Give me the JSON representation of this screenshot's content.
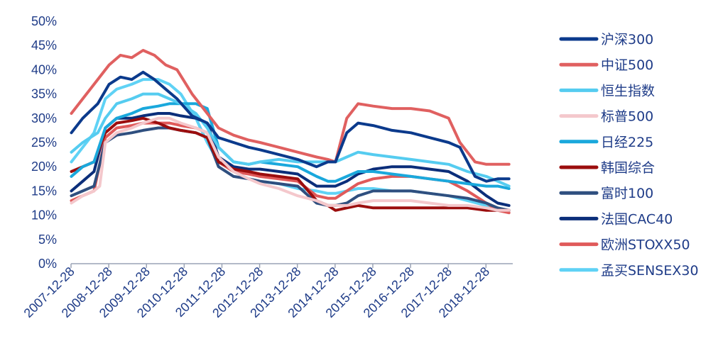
{
  "chart_data": {
    "type": "line",
    "title": "",
    "xlabel": "",
    "ylabel": "",
    "x_range": [
      2007.99,
      2019.7
    ],
    "ylim": [
      0,
      50
    ],
    "grid": false,
    "legend_position": "right",
    "y_ticks": [
      "0%",
      "5%",
      "10%",
      "15%",
      "20%",
      "25%",
      "30%",
      "35%",
      "40%",
      "45%",
      "50%"
    ],
    "x_ticks": [
      "2007-12-28",
      "2008-12-28",
      "2009-12-28",
      "2010-12-28",
      "2011-12-28",
      "2012-12-28",
      "2013-12-28",
      "2014-12-28",
      "2015-12-28",
      "2016-12-28",
      "2017-12-28",
      "2018-12-28"
    ],
    "series": [
      {
        "name": "沪深300",
        "color": "#0b3a8c",
        "x": [
          2008.0,
          2008.3,
          2008.7,
          2009.0,
          2009.3,
          2009.6,
          2009.9,
          2010.2,
          2010.5,
          2010.8,
          2011.2,
          2011.6,
          2011.9,
          2012.3,
          2012.7,
          2013.0,
          2013.5,
          2014.0,
          2014.5,
          2014.8,
          2015.0,
          2015.3,
          2015.6,
          2016.0,
          2016.5,
          2017.0,
          2017.5,
          2018.0,
          2018.3,
          2018.5,
          2018.7,
          2019.0,
          2019.3,
          2019.6
        ],
        "values": [
          27,
          30,
          33,
          37,
          38.5,
          38,
          39.5,
          38,
          36,
          34,
          30.5,
          29,
          26,
          25,
          24,
          23.5,
          22.5,
          21.5,
          20,
          21,
          21,
          27,
          29,
          28.5,
          27.5,
          27,
          26,
          25,
          24,
          21,
          18,
          17,
          17.5,
          17.5
        ]
      },
      {
        "name": "中证500",
        "color": "#e06060",
        "x": [
          2008.0,
          2008.3,
          2008.7,
          2009.0,
          2009.3,
          2009.6,
          2009.9,
          2010.2,
          2010.5,
          2010.8,
          2011.2,
          2011.6,
          2011.9,
          2012.3,
          2012.7,
          2013.0,
          2013.5,
          2014.0,
          2014.5,
          2014.8,
          2015.0,
          2015.3,
          2015.6,
          2016.0,
          2016.5,
          2017.0,
          2017.5,
          2018.0,
          2018.3,
          2018.5,
          2018.7,
          2019.0,
          2019.3,
          2019.6
        ],
        "values": [
          31,
          34,
          38,
          41,
          43,
          42.5,
          44,
          43,
          41,
          40,
          35,
          31,
          28,
          26.5,
          25.5,
          25,
          24,
          23,
          22,
          21.5,
          21,
          30,
          33,
          32.5,
          32,
          32,
          31.5,
          30,
          25,
          23,
          21,
          20.5,
          20.5,
          20.5
        ]
      },
      {
        "name": "恒生指数",
        "color": "#55ccf0",
        "x": [
          2008.0,
          2008.3,
          2008.7,
          2008.9,
          2009.2,
          2009.6,
          2009.9,
          2010.3,
          2010.6,
          2010.9,
          2011.3,
          2011.6,
          2011.9,
          2012.3,
          2012.7,
          2013.0,
          2013.5,
          2014.0,
          2014.5,
          2014.8,
          2015.0,
          2015.3,
          2015.6,
          2016.0,
          2016.5,
          2017.0,
          2017.5,
          2018.0,
          2018.5,
          2019.0,
          2019.3,
          2019.6
        ],
        "values": [
          23,
          25,
          27,
          30,
          33,
          34,
          35,
          35,
          34,
          33,
          31,
          28,
          24,
          21,
          20.5,
          21,
          21.5,
          21,
          21,
          21,
          21,
          22,
          23,
          22.5,
          22,
          21.5,
          21,
          20.5,
          19,
          18,
          17,
          16
        ]
      },
      {
        "name": "标普500",
        "color": "#f4c8cc",
        "x": [
          2008.0,
          2008.3,
          2008.6,
          2008.75,
          2008.9,
          2009.2,
          2009.6,
          2009.9,
          2010.3,
          2010.6,
          2010.9,
          2011.3,
          2011.6,
          2011.9,
          2012.3,
          2012.7,
          2013.0,
          2013.5,
          2014.0,
          2014.5,
          2014.8,
          2015.0,
          2015.3,
          2015.6,
          2016.0,
          2016.5,
          2017.0,
          2017.5,
          2018.0,
          2018.5,
          2019.0,
          2019.3,
          2019.6
        ],
        "values": [
          12.5,
          14,
          15,
          16,
          25,
          27,
          28,
          29,
          30,
          30,
          29,
          28,
          27,
          22,
          19,
          17.5,
          16.5,
          15.5,
          14,
          13,
          12,
          12,
          12,
          12.5,
          13,
          13,
          13,
          12.5,
          12,
          12,
          11.5,
          11,
          11
        ]
      },
      {
        "name": "日经225",
        "color": "#1aa8dc",
        "x": [
          2008.0,
          2008.3,
          2008.6,
          2008.9,
          2009.2,
          2009.6,
          2009.9,
          2010.3,
          2010.6,
          2010.9,
          2011.3,
          2011.6,
          2011.9,
          2012.3,
          2012.7,
          2013.0,
          2013.5,
          2014.0,
          2014.5,
          2014.8,
          2015.0,
          2015.3,
          2015.6,
          2016.0,
          2016.5,
          2017.0,
          2017.5,
          2018.0,
          2018.5,
          2019.0,
          2019.3,
          2019.6
        ],
        "values": [
          18,
          20,
          21,
          28,
          30,
          31,
          32,
          32.5,
          33,
          33,
          33,
          32,
          24,
          21,
          20.5,
          21,
          20.5,
          20,
          18,
          17,
          17,
          18,
          19,
          19,
          18.5,
          18,
          17.5,
          17,
          16.5,
          16,
          16,
          15.5
        ]
      },
      {
        "name": "韩国综合",
        "color": "#9b0e0e",
        "x": [
          2008.0,
          2008.3,
          2008.6,
          2008.9,
          2009.2,
          2009.6,
          2009.9,
          2010.3,
          2010.6,
          2010.9,
          2011.3,
          2011.6,
          2011.9,
          2012.3,
          2012.7,
          2013.0,
          2013.5,
          2014.0,
          2014.5,
          2014.8,
          2015.0,
          2015.3,
          2015.6,
          2016.0,
          2016.5,
          2017.0,
          2017.5,
          2018.0,
          2018.5,
          2019.0,
          2019.3,
          2019.6
        ],
        "values": [
          19,
          20,
          21,
          27,
          29,
          29.5,
          30,
          29,
          28,
          27.5,
          27,
          26,
          21,
          19.5,
          19,
          18.5,
          18,
          17.5,
          13,
          12,
          11,
          11.5,
          12,
          11.5,
          11.5,
          11.5,
          11.5,
          11.5,
          11.5,
          11,
          11,
          11
        ]
      },
      {
        "name": "富时100",
        "color": "#2f4f7f",
        "x": [
          2008.0,
          2008.3,
          2008.6,
          2008.9,
          2009.2,
          2009.6,
          2009.9,
          2010.3,
          2010.6,
          2010.9,
          2011.3,
          2011.6,
          2011.9,
          2012.3,
          2012.7,
          2013.0,
          2013.5,
          2014.0,
          2014.5,
          2014.8,
          2015.0,
          2015.3,
          2015.6,
          2016.0,
          2016.5,
          2017.0,
          2017.5,
          2018.0,
          2018.5,
          2019.0,
          2019.3,
          2019.6
        ],
        "values": [
          14,
          15,
          16,
          25,
          26.5,
          27,
          27.5,
          28,
          28,
          27.5,
          27,
          26,
          20,
          18,
          17.5,
          17,
          16.5,
          16,
          12.5,
          12,
          12,
          12.5,
          14,
          15,
          15,
          15,
          14.5,
          14,
          13.5,
          12.5,
          11.5,
          11
        ]
      },
      {
        "name": "法国CAC40",
        "color": "#0b2e7a",
        "x": [
          2008.0,
          2008.3,
          2008.6,
          2008.9,
          2009.2,
          2009.6,
          2009.9,
          2010.3,
          2010.6,
          2010.9,
          2011.3,
          2011.6,
          2011.9,
          2012.3,
          2012.7,
          2013.0,
          2013.5,
          2014.0,
          2014.5,
          2014.8,
          2015.0,
          2015.3,
          2015.6,
          2016.0,
          2016.5,
          2017.0,
          2017.5,
          2018.0,
          2018.5,
          2019.0,
          2019.3,
          2019.6
        ],
        "values": [
          15,
          17,
          19,
          28,
          30,
          30,
          30.5,
          31,
          31,
          30.5,
          30,
          29,
          22,
          20,
          19.5,
          19.5,
          19,
          18.5,
          16,
          16,
          16,
          17,
          18.5,
          19.5,
          20,
          20,
          19.5,
          19,
          17,
          14,
          12.5,
          12
        ]
      },
      {
        "name": "欧洲STOXX50",
        "color": "#e05a5a",
        "x": [
          2008.0,
          2008.3,
          2008.6,
          2008.9,
          2009.2,
          2009.6,
          2009.9,
          2010.3,
          2010.6,
          2010.9,
          2011.3,
          2011.6,
          2011.9,
          2012.3,
          2012.7,
          2013.0,
          2013.5,
          2014.0,
          2014.5,
          2014.8,
          2015.0,
          2015.3,
          2015.6,
          2016.0,
          2016.5,
          2017.0,
          2017.5,
          2018.0,
          2018.5,
          2019.0,
          2019.3,
          2019.6
        ],
        "values": [
          13,
          14,
          15,
          26,
          28,
          28.5,
          29,
          29,
          29,
          28.5,
          28,
          27,
          21,
          19,
          18.5,
          18,
          17.5,
          17,
          14,
          13.5,
          13.5,
          15,
          16.5,
          17.5,
          18,
          18,
          17.5,
          17,
          15,
          12.5,
          11,
          10.5
        ]
      },
      {
        "name": "孟买SENSEX30",
        "color": "#5fd2f5",
        "x": [
          2008.0,
          2008.3,
          2008.6,
          2008.9,
          2009.2,
          2009.6,
          2009.9,
          2010.3,
          2010.6,
          2010.9,
          2011.3,
          2011.6,
          2011.9,
          2012.3,
          2012.7,
          2013.0,
          2013.5,
          2014.0,
          2014.5,
          2014.8,
          2015.0,
          2015.3,
          2015.6,
          2016.0,
          2016.5,
          2017.0,
          2017.5,
          2018.0,
          2018.5,
          2019.0,
          2019.3,
          2019.6
        ],
        "values": [
          21,
          24,
          27,
          34,
          36,
          37,
          38,
          38,
          37,
          35,
          30,
          25,
          21,
          19,
          17.5,
          17,
          16.5,
          15.5,
          15,
          14.5,
          14.5,
          15,
          15.5,
          15.5,
          15,
          15,
          14.5,
          14,
          13,
          12,
          11.5,
          11
        ]
      }
    ]
  }
}
